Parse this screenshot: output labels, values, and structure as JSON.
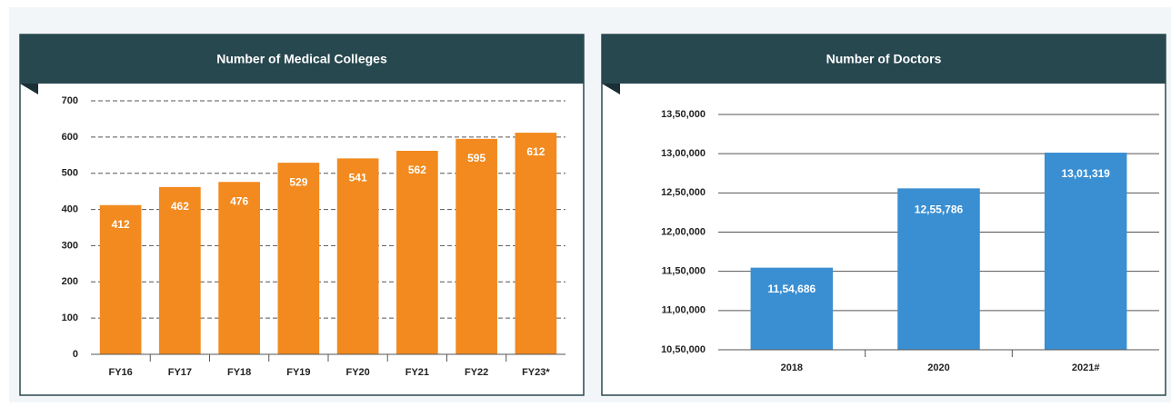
{
  "chart_data": [
    {
      "type": "bar",
      "title": "Number of Medical Colleges",
      "categories": [
        "FY16",
        "FY17",
        "FY18",
        "FY19",
        "FY20",
        "FY21",
        "FY22",
        "FY23*"
      ],
      "values": [
        412,
        462,
        476,
        529,
        541,
        562,
        595,
        612
      ],
      "color": "#f28a1f",
      "ylim": [
        0,
        700
      ],
      "yticks": [
        0,
        100,
        200,
        300,
        400,
        500,
        600,
        700
      ],
      "grid": true
    },
    {
      "type": "bar",
      "title": "Number of Doctors",
      "categories": [
        "2018",
        "2020",
        "2021#"
      ],
      "values": [
        1154686,
        1255786,
        1301319
      ],
      "value_labels": [
        "11,54,686",
        "12,55,786",
        "13,01,319"
      ],
      "color": "#3a8fd2",
      "ylim": [
        1050000,
        1350000
      ],
      "yticks": [
        {
          "value": 1050000,
          "label": "10,50,000"
        },
        {
          "value": 1100000,
          "label": "11,00,000"
        },
        {
          "value": 1150000,
          "label": "11,50,000"
        },
        {
          "value": 1200000,
          "label": "12,00,000"
        },
        {
          "value": 1250000,
          "label": "12,50,000"
        },
        {
          "value": 1300000,
          "label": "13,00,000"
        },
        {
          "value": 1350000,
          "label": "13,50,000"
        }
      ],
      "grid": true
    }
  ]
}
